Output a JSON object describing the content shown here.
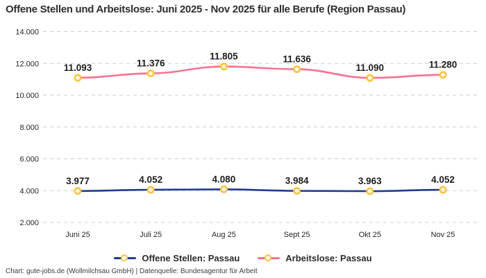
{
  "header": {
    "title": "Offene Stellen und Arbeitslose: Juni 2025 - Nov 2025 für alle Berufe (Region Passau)"
  },
  "footer": {
    "credit": "Chart: gute-jobs.de (Wollmilchsau GmbH) | Datenquelle: Bundesagentur für Arbeit"
  },
  "colors": {
    "series_offene_stellen": "#1e3a8f",
    "series_arbeitslose": "#f8718f",
    "marker_stroke": "#ffc233",
    "marker_fill": "#ffffff",
    "gridline": "#cccccc",
    "tick_text": "#23252b",
    "data_label": "#1c1c1c",
    "title_text": "#2e2e2e"
  },
  "chart_data": {
    "type": "line",
    "title": "Offene Stellen und Arbeitslose: Juni 2025 - Nov 2025 für alle Berufe (Region Passau)",
    "categories": [
      "Juni 25",
      "Juli 25",
      "Aug 25",
      "Sept 25",
      "Okt 25",
      "Nov 25"
    ],
    "series": [
      {
        "name": "Offene Stellen: Passau",
        "color": "#1e3a8f",
        "values": [
          3977,
          4052,
          4080,
          3984,
          3963,
          4052
        ],
        "point_labels": [
          "3.977",
          "4.052",
          "4.080",
          "3.984",
          "3.963",
          "4.052"
        ]
      },
      {
        "name": "Arbeitslose: Passau",
        "color": "#f8718f",
        "values": [
          11093,
          11376,
          11805,
          11636,
          11090,
          11280
        ],
        "point_labels": [
          "11.093",
          "11.376",
          "11.805",
          "11.636",
          "11.090",
          "11.280"
        ]
      }
    ],
    "xlabel": "",
    "ylabel": "",
    "ylim": [
      2000,
      14000
    ],
    "yticks": [
      2000,
      4000,
      6000,
      8000,
      10000,
      12000,
      14000
    ],
    "ytick_labels": [
      "2.000",
      "4.000",
      "6.000",
      "8.000",
      "10.000",
      "12.000",
      "14.000"
    ],
    "grid": "horizontal-dashed",
    "legend_position": "bottom",
    "marker": {
      "shape": "ring-circle",
      "fill": "#ffffff",
      "stroke": "#ffc233"
    }
  }
}
